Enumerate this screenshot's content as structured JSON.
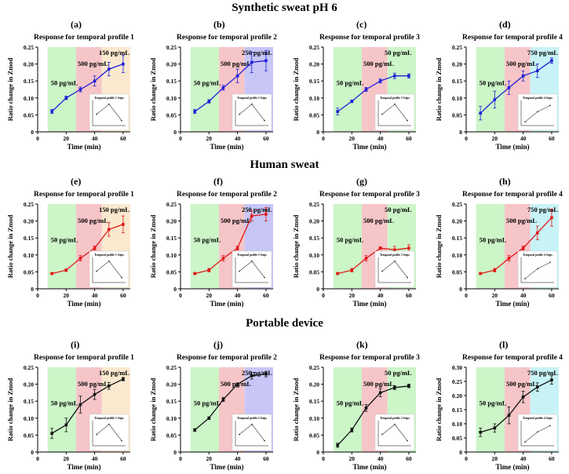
{
  "sections": [
    {
      "title": "Synthetic sweat pH 6"
    },
    {
      "title": "Human sweat"
    },
    {
      "title": "Portable device"
    }
  ],
  "colors": {
    "green": "#ccf5c8",
    "red": "#f6c5c8",
    "orange": "#fbe9cf",
    "blue": "#c7c6f7",
    "cyan": "#c8f3f6",
    "line_blue": "#1f1fd8",
    "line_red": "#e01818",
    "line_black": "#111111"
  },
  "chart_data": [
    {
      "panel": "(a)",
      "type": "line",
      "title": "Response for temporal profile 1",
      "xlabel": "Time (min)",
      "ylabel": "Ratio change in Zmod",
      "xlim": [
        0,
        65
      ],
      "ylim": [
        0,
        0.25
      ],
      "yticks": [
        0,
        0.05,
        0.1,
        0.15,
        0.2,
        0.25
      ],
      "xticks": [
        0,
        20,
        40,
        60
      ],
      "x": [
        10,
        20,
        30,
        40,
        50,
        60
      ],
      "values": [
        0.06,
        0.1,
        0.125,
        0.15,
        0.185,
        0.2
      ],
      "errors": [
        0.006,
        0.005,
        0.007,
        0.015,
        0.02,
        0.025
      ],
      "line_color": "blue",
      "regions": [
        {
          "label": "50 pg/mL",
          "from": 7,
          "to": 27,
          "color": "green"
        },
        {
          "label": "500 pg/mL",
          "from": 27,
          "to": 45,
          "color": "red"
        },
        {
          "label": "150 pg/mL",
          "from": 45,
          "to": 65,
          "color": "orange"
        }
      ],
      "inset": {
        "title": "Temporal profile 1 Steps",
        "shape": "peak"
      }
    },
    {
      "panel": "(b)",
      "type": "line",
      "title": "Response for temporal profile 2",
      "xlabel": "Time (min)",
      "ylabel": "Ratio change in Zmod",
      "xlim": [
        0,
        65
      ],
      "ylim": [
        0,
        0.25
      ],
      "yticks": [
        0,
        0.05,
        0.1,
        0.15,
        0.2,
        0.25
      ],
      "xticks": [
        0,
        20,
        40,
        60
      ],
      "x": [
        10,
        20,
        30,
        40,
        50,
        60
      ],
      "values": [
        0.06,
        0.09,
        0.13,
        0.165,
        0.205,
        0.21
      ],
      "errors": [
        0.006,
        0.005,
        0.007,
        0.02,
        0.03,
        0.03
      ],
      "line_color": "blue",
      "regions": [
        {
          "label": "50 pg/mL",
          "from": 7,
          "to": 27,
          "color": "green"
        },
        {
          "label": "500 pg/mL",
          "from": 27,
          "to": 45,
          "color": "red"
        },
        {
          "label": "250 pg/mL",
          "from": 45,
          "to": 65,
          "color": "blue"
        }
      ],
      "inset": {
        "title": "Temporal profile 2 Steps",
        "shape": "peak"
      }
    },
    {
      "panel": "(c)",
      "type": "line",
      "title": "Response for temporal profile 3",
      "xlabel": "Time (min)",
      "ylabel": "Ratio change in Zmod",
      "xlim": [
        0,
        65
      ],
      "ylim": [
        0,
        0.25
      ],
      "yticks": [
        0,
        0.05,
        0.1,
        0.15,
        0.2,
        0.25
      ],
      "xticks": [
        0,
        20,
        40,
        60
      ],
      "x": [
        10,
        20,
        30,
        40,
        50,
        60
      ],
      "values": [
        0.06,
        0.09,
        0.125,
        0.15,
        0.165,
        0.165
      ],
      "errors": [
        0.01,
        0.004,
        0.006,
        0.006,
        0.008,
        0.006
      ],
      "line_color": "blue",
      "regions": [
        {
          "label": "50 pg/mL",
          "from": 7,
          "to": 27,
          "color": "green"
        },
        {
          "label": "500 pg/mL",
          "from": 27,
          "to": 45,
          "color": "red"
        },
        {
          "label": "50 pg/mL",
          "from": 45,
          "to": 65,
          "color": "green"
        }
      ],
      "inset": {
        "title": "Temporal profile 3 Steps",
        "shape": "peak"
      }
    },
    {
      "panel": "(d)",
      "type": "line",
      "title": "Response for temporal profile 4",
      "xlabel": "Time (min)",
      "ylabel": "Ratio change in Zmod",
      "xlim": [
        0,
        65
      ],
      "ylim": [
        0,
        0.25
      ],
      "yticks": [
        0,
        0.05,
        0.1,
        0.15,
        0.2,
        0.25
      ],
      "xticks": [
        0,
        20,
        40,
        60
      ],
      "x": [
        10,
        20,
        30,
        40,
        50,
        60
      ],
      "values": [
        0.055,
        0.095,
        0.13,
        0.165,
        0.18,
        0.21
      ],
      "errors": [
        0.02,
        0.025,
        0.02,
        0.015,
        0.02,
        0.008
      ],
      "line_color": "blue",
      "regions": [
        {
          "label": "50 pg/mL",
          "from": 7,
          "to": 27,
          "color": "green"
        },
        {
          "label": "500 pg/mL",
          "from": 27,
          "to": 45,
          "color": "red"
        },
        {
          "label": "750 pg/mL",
          "from": 45,
          "to": 65,
          "color": "cyan"
        }
      ],
      "inset": {
        "title": "Temporal profile 4 Steps",
        "shape": "rise"
      }
    },
    {
      "panel": "(e)",
      "type": "line",
      "title": "Response for temporal profile 1",
      "xlabel": "Time (min)",
      "ylabel": "Ratio change in Zmod",
      "xlim": [
        0,
        65
      ],
      "ylim": [
        0,
        0.25
      ],
      "yticks": [
        0,
        0.05,
        0.1,
        0.15,
        0.2,
        0.25
      ],
      "xticks": [
        0,
        20,
        40,
        60
      ],
      "x": [
        10,
        20,
        30,
        40,
        50,
        60
      ],
      "values": [
        0.045,
        0.055,
        0.09,
        0.12,
        0.175,
        0.19
      ],
      "errors": [
        0.003,
        0.004,
        0.008,
        0.006,
        0.02,
        0.025
      ],
      "line_color": "red",
      "regions": [
        {
          "label": "50 pg/mL",
          "from": 7,
          "to": 27,
          "color": "green"
        },
        {
          "label": "500 pg/mL",
          "from": 27,
          "to": 45,
          "color": "red"
        },
        {
          "label": "150 pg/mL",
          "from": 45,
          "to": 65,
          "color": "orange"
        }
      ],
      "inset": {
        "title": "Temporal profile 1 Steps",
        "shape": "peak"
      }
    },
    {
      "panel": "(f)",
      "type": "line",
      "title": "Response for temporal profile 2",
      "xlabel": "Time (min)",
      "ylabel": "Ratio change in Zmod",
      "xlim": [
        0,
        65
      ],
      "ylim": [
        0,
        0.25
      ],
      "yticks": [
        0,
        0.05,
        0.1,
        0.15,
        0.2,
        0.25
      ],
      "xticks": [
        0,
        20,
        40,
        60
      ],
      "x": [
        10,
        20,
        30,
        40,
        50,
        60
      ],
      "values": [
        0.045,
        0.055,
        0.09,
        0.12,
        0.215,
        0.22
      ],
      "errors": [
        0.003,
        0.005,
        0.008,
        0.006,
        0.015,
        0.02
      ],
      "line_color": "red",
      "regions": [
        {
          "label": "50 pg/mL",
          "from": 7,
          "to": 27,
          "color": "green"
        },
        {
          "label": "500 pg/mL",
          "from": 27,
          "to": 45,
          "color": "red"
        },
        {
          "label": "250 pg/mL",
          "from": 45,
          "to": 65,
          "color": "blue"
        }
      ],
      "inset": {
        "title": "Temporal profile 2 Steps",
        "shape": "peak"
      }
    },
    {
      "panel": "(g)",
      "type": "line",
      "title": "Response for temporal profile 3",
      "xlabel": "Time (min)",
      "ylabel": "Ratio change in Zmod",
      "xlim": [
        0,
        65
      ],
      "ylim": [
        0,
        0.25
      ],
      "yticks": [
        0,
        0.05,
        0.1,
        0.15,
        0.2,
        0.25
      ],
      "xticks": [
        0,
        20,
        40,
        60
      ],
      "x": [
        10,
        20,
        30,
        40,
        50,
        60
      ],
      "values": [
        0.045,
        0.055,
        0.09,
        0.12,
        0.115,
        0.12
      ],
      "errors": [
        0.003,
        0.005,
        0.008,
        0.004,
        0.01,
        0.01
      ],
      "line_color": "red",
      "regions": [
        {
          "label": "50 pg/mL",
          "from": 7,
          "to": 27,
          "color": "green"
        },
        {
          "label": "500 pg/mL",
          "from": 27,
          "to": 45,
          "color": "red"
        },
        {
          "label": "50 pg/mL",
          "from": 45,
          "to": 65,
          "color": "green"
        }
      ],
      "inset": {
        "title": "Temporal profile 3 Steps",
        "shape": "peak"
      }
    },
    {
      "panel": "(h)",
      "type": "line",
      "title": "Response for temporal profile 4",
      "xlabel": "Time (min)",
      "ylabel": "Ratio change in Zmod",
      "xlim": [
        0,
        65
      ],
      "ylim": [
        0,
        0.25
      ],
      "yticks": [
        0,
        0.05,
        0.1,
        0.15,
        0.2,
        0.25
      ],
      "xticks": [
        0,
        20,
        40,
        60
      ],
      "x": [
        10,
        20,
        30,
        40,
        50,
        60
      ],
      "values": [
        0.045,
        0.055,
        0.09,
        0.12,
        0.165,
        0.21
      ],
      "errors": [
        0.003,
        0.005,
        0.008,
        0.006,
        0.02,
        0.025
      ],
      "line_color": "red",
      "regions": [
        {
          "label": "50 pg/mL",
          "from": 7,
          "to": 27,
          "color": "green"
        },
        {
          "label": "500 pg/mL",
          "from": 27,
          "to": 45,
          "color": "red"
        },
        {
          "label": "750 pg/mL",
          "from": 45,
          "to": 65,
          "color": "cyan"
        }
      ],
      "inset": {
        "title": "Temporal profile 4 Steps",
        "shape": "rise"
      }
    },
    {
      "panel": "(i)",
      "type": "line",
      "title": "Response for temporal profile 1",
      "xlabel": "Time (min)",
      "ylabel": "Ratio change in Zmod",
      "xlim": [
        0,
        65
      ],
      "ylim": [
        0,
        0.25
      ],
      "yticks": [
        0,
        0.05,
        0.1,
        0.15,
        0.2,
        0.25
      ],
      "xticks": [
        0,
        20,
        40,
        60
      ],
      "x": [
        10,
        20,
        30,
        40,
        50,
        60
      ],
      "values": [
        0.055,
        0.08,
        0.14,
        0.17,
        0.195,
        0.215
      ],
      "errors": [
        0.015,
        0.02,
        0.025,
        0.015,
        0.01,
        0.005
      ],
      "line_color": "black",
      "regions": [
        {
          "label": "50 pg/mL",
          "from": 7,
          "to": 27,
          "color": "green"
        },
        {
          "label": "500 pg/mL",
          "from": 27,
          "to": 45,
          "color": "red"
        },
        {
          "label": "150 pg/mL",
          "from": 45,
          "to": 65,
          "color": "orange"
        }
      ],
      "inset": {
        "title": "Temporal profile 1 Steps",
        "shape": "peak"
      }
    },
    {
      "panel": "(j)",
      "type": "line",
      "title": "Response for temporal profile 2",
      "xlabel": "Time (min)",
      "ylabel": "Ratio change in Zmod",
      "xlim": [
        0,
        65
      ],
      "ylim": [
        0,
        0.25
      ],
      "yticks": [
        0,
        0.05,
        0.1,
        0.15,
        0.2,
        0.25
      ],
      "xticks": [
        0,
        20,
        40,
        60
      ],
      "x": [
        10,
        20,
        30,
        40,
        50,
        60
      ],
      "values": [
        0.065,
        0.1,
        0.155,
        0.2,
        0.225,
        0.23
      ],
      "errors": [
        0.004,
        0.004,
        0.006,
        0.004,
        0.01,
        0.008
      ],
      "line_color": "black",
      "regions": [
        {
          "label": "50 pg/mL",
          "from": 7,
          "to": 27,
          "color": "green"
        },
        {
          "label": "500 pg/mL",
          "from": 27,
          "to": 45,
          "color": "red"
        },
        {
          "label": "250 pg/mL",
          "from": 45,
          "to": 65,
          "color": "blue"
        }
      ],
      "inset": {
        "title": "Temporal profile 2 Steps",
        "shape": "peak"
      }
    },
    {
      "panel": "(k)",
      "type": "line",
      "title": "Response for temporal profile 3",
      "xlabel": "Time (min)",
      "ylabel": "Ratio change in Zmod",
      "xlim": [
        0,
        65
      ],
      "ylim": [
        0,
        0.25
      ],
      "yticks": [
        0,
        0.05,
        0.1,
        0.15,
        0.2,
        0.25
      ],
      "xticks": [
        0,
        20,
        40,
        60
      ],
      "x": [
        10,
        20,
        30,
        40,
        50,
        60
      ],
      "values": [
        0.02,
        0.065,
        0.13,
        0.175,
        0.19,
        0.195
      ],
      "errors": [
        0.006,
        0.006,
        0.01,
        0.012,
        0.006,
        0.005
      ],
      "line_color": "black",
      "regions": [
        {
          "label": "50 pg/mL",
          "from": 7,
          "to": 27,
          "color": "green"
        },
        {
          "label": "500 pg/mL",
          "from": 27,
          "to": 45,
          "color": "red"
        },
        {
          "label": "50 pg/mL",
          "from": 45,
          "to": 65,
          "color": "green"
        }
      ],
      "inset": {
        "title": "Temporal profile 3 Steps",
        "shape": "peak"
      }
    },
    {
      "panel": "(l)",
      "type": "line",
      "title": "Response for temporal profile 4",
      "xlabel": "Time (min)",
      "ylabel": "Ratio change in Zmod",
      "xlim": [
        0,
        65
      ],
      "ylim": [
        0,
        0.3
      ],
      "yticks": [
        0,
        0.05,
        0.1,
        0.15,
        0.2,
        0.25,
        0.3
      ],
      "xticks": [
        0,
        20,
        40,
        60
      ],
      "x": [
        10,
        20,
        30,
        40,
        50,
        60
      ],
      "values": [
        0.07,
        0.085,
        0.13,
        0.195,
        0.23,
        0.255
      ],
      "errors": [
        0.015,
        0.015,
        0.03,
        0.02,
        0.015,
        0.015
      ],
      "line_color": "black",
      "regions": [
        {
          "label": "50 pg/mL",
          "from": 7,
          "to": 27,
          "color": "green"
        },
        {
          "label": "500 pg/mL",
          "from": 27,
          "to": 45,
          "color": "red"
        },
        {
          "label": "750 pg/mL",
          "from": 45,
          "to": 65,
          "color": "cyan"
        }
      ],
      "inset": {
        "title": "Temporal profile 4 Steps",
        "shape": "rise"
      }
    }
  ]
}
